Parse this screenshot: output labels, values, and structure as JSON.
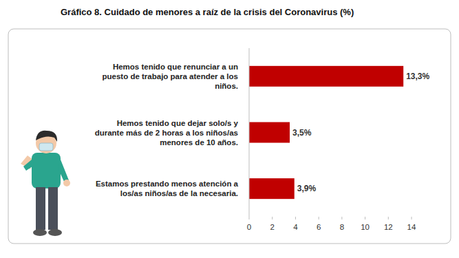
{
  "chart_data": {
    "type": "bar",
    "orientation": "horizontal",
    "title": "Gráfico 8. Cuidado de menores a raíz de la crisis del Coronavirus (%)",
    "categories": [
      "Hemos tenido que renunciar a un puesto de trabajo para atender a los niños.",
      "Hemos tenido que dejar solo/s y durante más de 2 horas a los niños/as menores de 10 años.",
      "Estamos prestando menos atención a los/as niños/as de la necesaria."
    ],
    "values": [
      13.3,
      3.5,
      3.9
    ],
    "value_labels": [
      "13,3%",
      "3,5%",
      "3,9%"
    ],
    "data_labels": true,
    "color": "#c00000",
    "xlim": [
      0,
      14
    ],
    "xticks": [
      0,
      2,
      4,
      6,
      8,
      10,
      12,
      14
    ],
    "grid": false
  }
}
